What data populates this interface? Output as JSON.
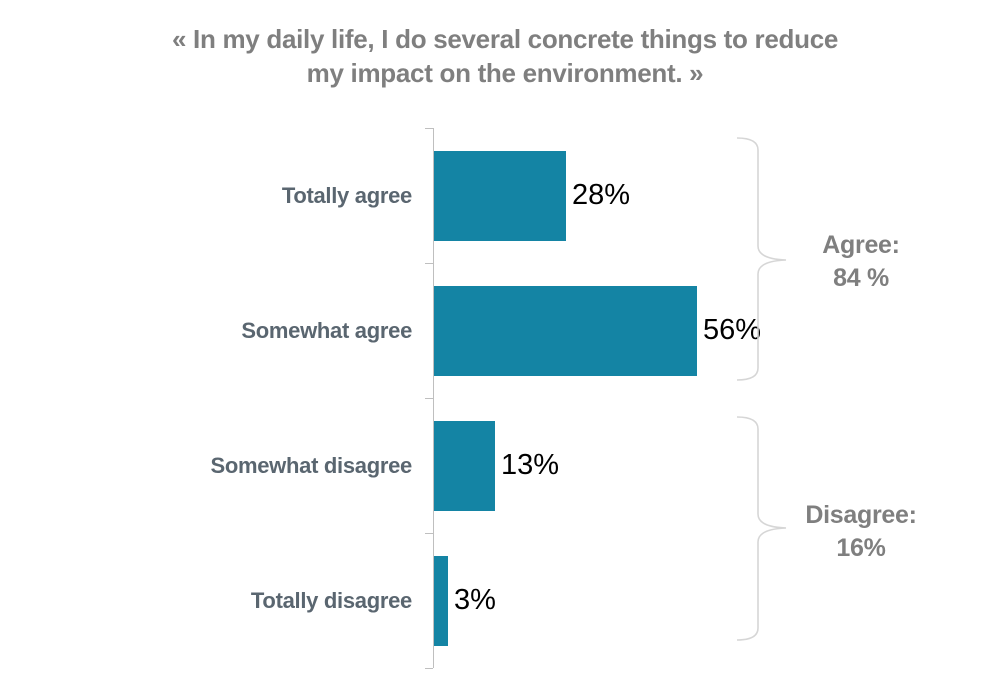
{
  "chart_data": {
    "type": "bar",
    "orientation": "horizontal",
    "title": "« In my daily life, I do several concrete things to reduce my impact on the environment. »",
    "title_line1": "« In my daily life, I do several concrete things to reduce",
    "title_line2": "my impact on the environment. »",
    "categories": [
      "Totally agree",
      "Somewhat agree",
      "Somewhat disagree",
      "Totally disagree"
    ],
    "values": [
      28,
      56,
      13,
      3
    ],
    "value_labels": [
      "28%",
      "56%",
      "13%",
      "3%"
    ],
    "xlim": [
      0,
      60
    ],
    "grid": false,
    "legend": false,
    "bar_color": "#1484a4",
    "axis_color": "#bfbfbf",
    "groups": [
      {
        "name": "agree",
        "label_line1": "Agree:",
        "label_line2": "84 %",
        "covers_categories": [
          "Totally agree",
          "Somewhat agree"
        ]
      },
      {
        "name": "disagree",
        "label_line1": "Disagree:",
        "label_line2": "16%",
        "covers_categories": [
          "Somewhat disagree",
          "Totally disagree"
        ]
      }
    ],
    "colors": {
      "bar": "#1484a4",
      "title_text": "#7f7f7f",
      "category_text": "#5a6670",
      "value_text": "#000000",
      "group_text": "#7f7f7f",
      "axis": "#bfbfbf",
      "brace": "#d6d6d6",
      "background": "#ffffff"
    }
  }
}
